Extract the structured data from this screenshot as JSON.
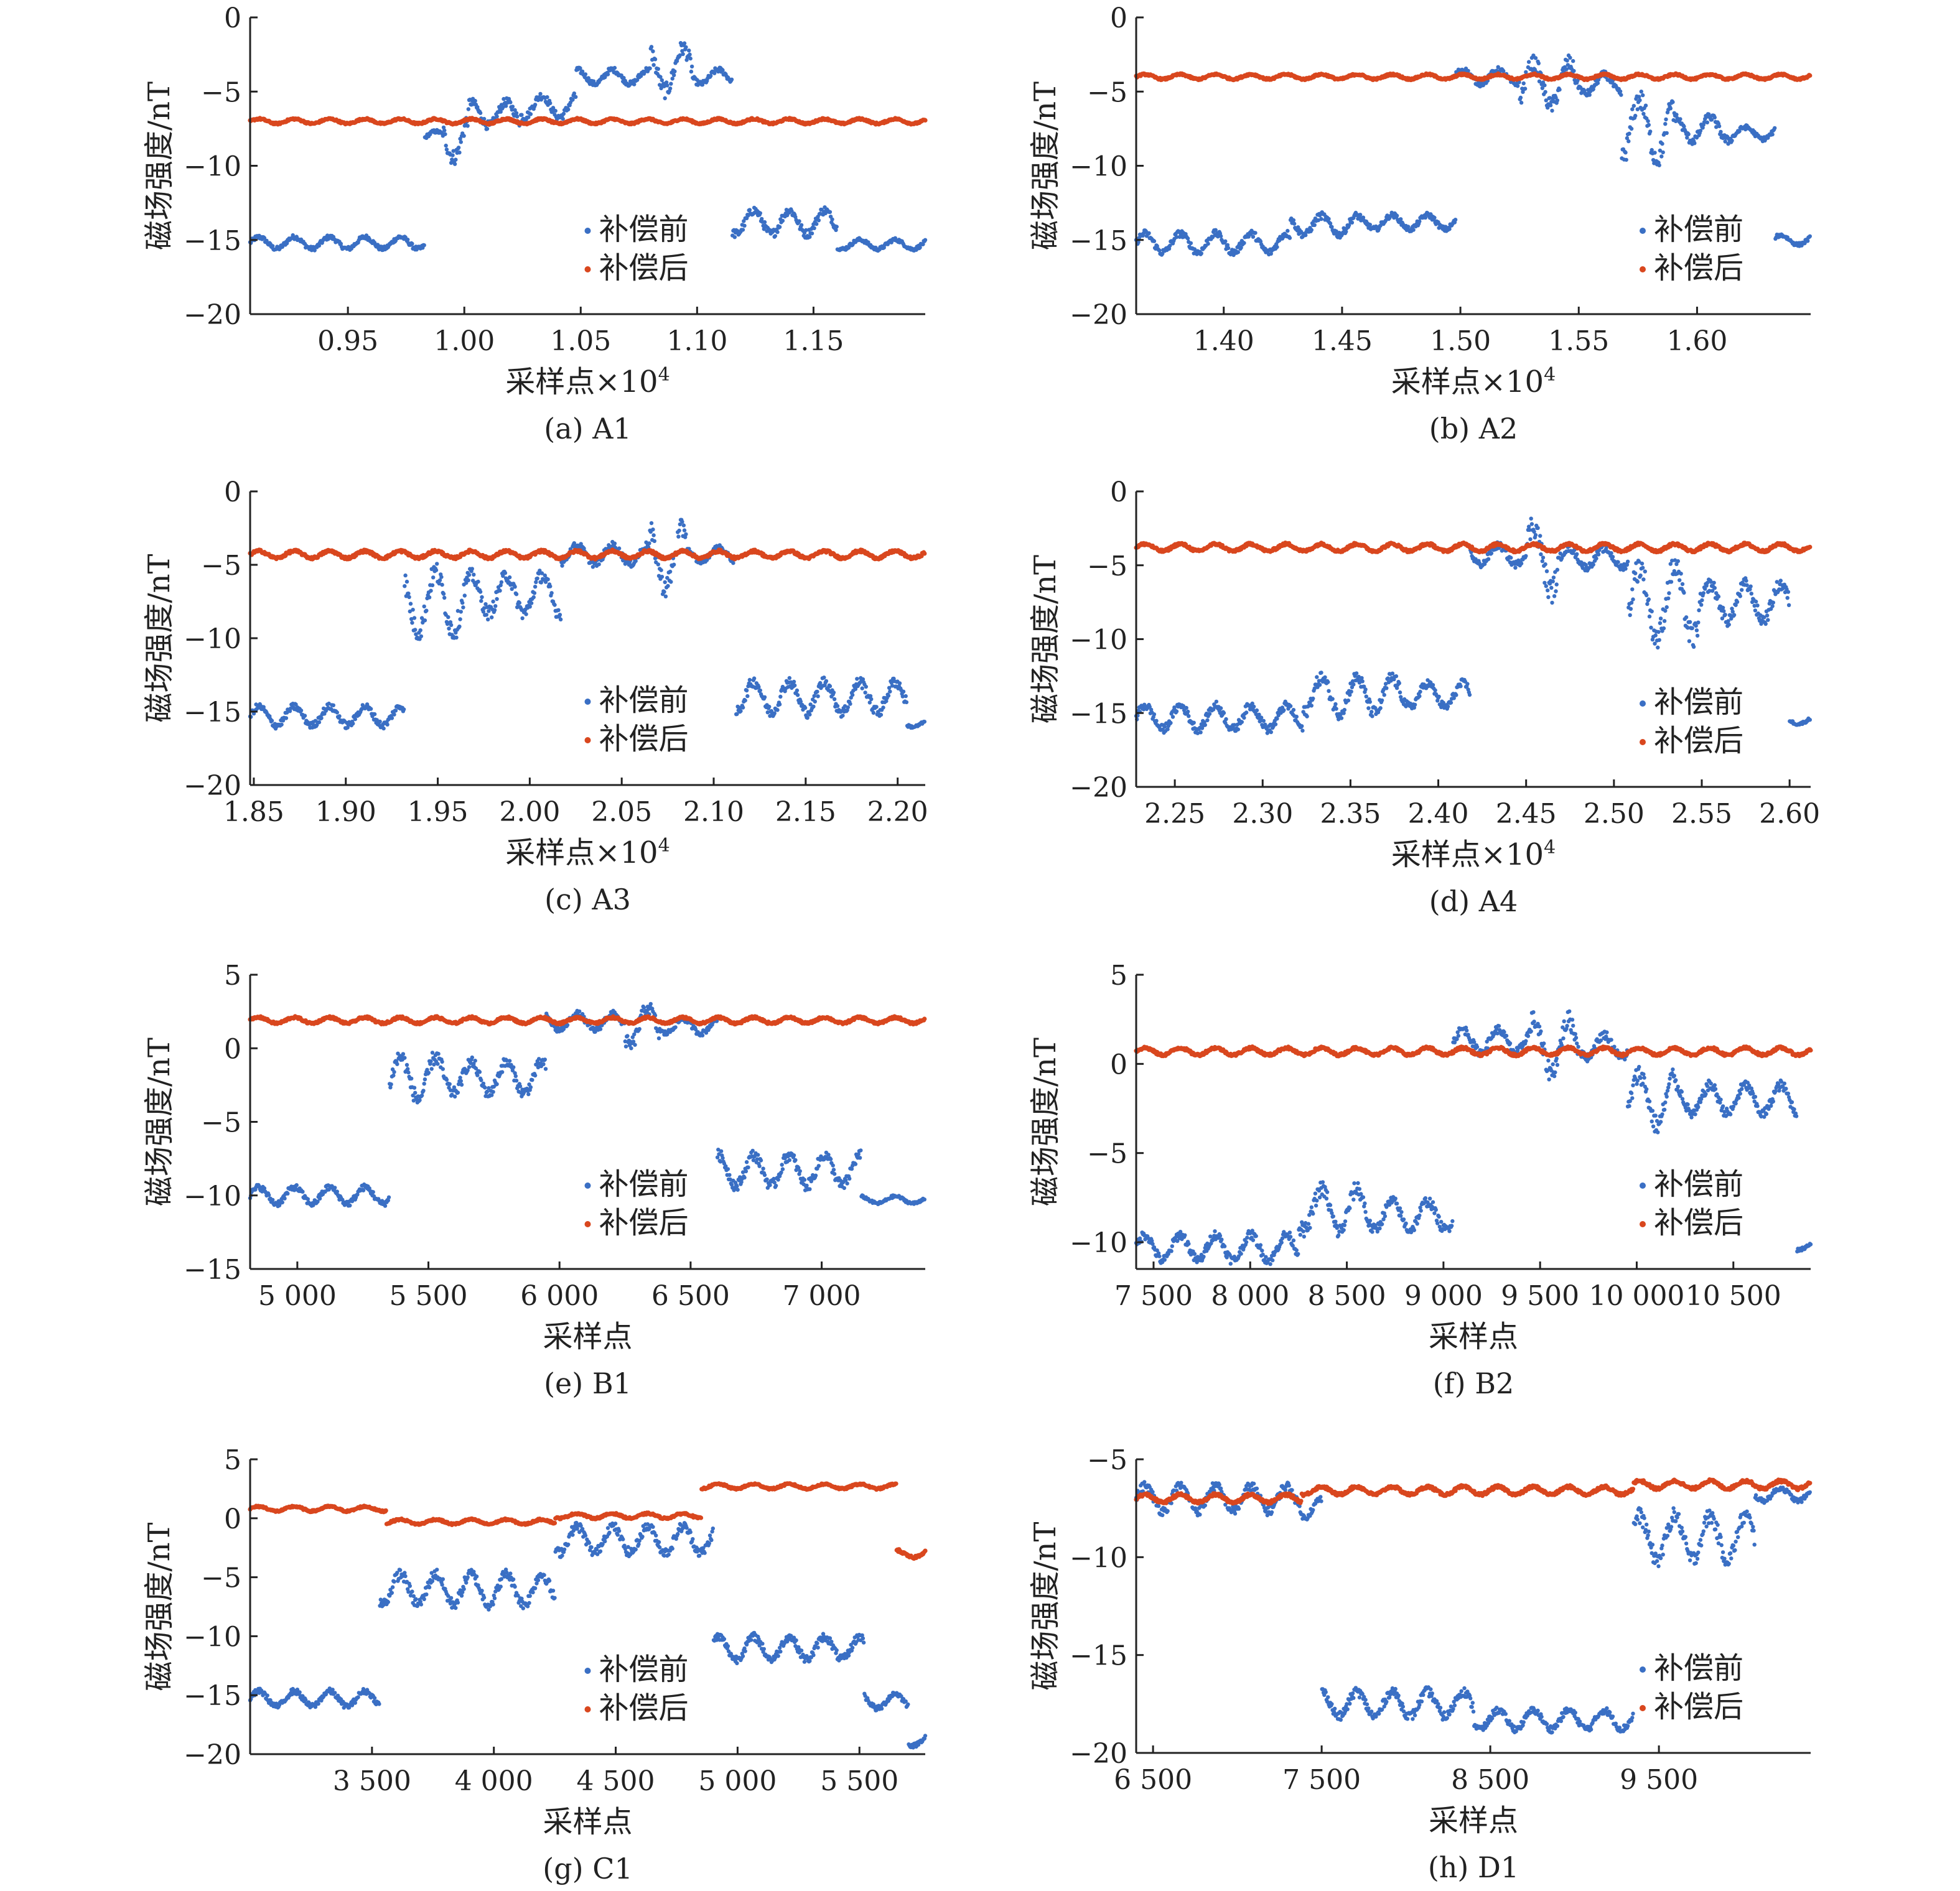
{
  "figure": {
    "series_colors": {
      "before": "#3a6fc4",
      "after": "#d9471e"
    }
  },
  "chart_data": [
    {
      "id": "A1",
      "type": "scatter",
      "caption": "(a) A1",
      "xlabel_text": "采样点×10",
      "xlabel_sup": "4",
      "ylabel": "磁场强度/nT",
      "xlim": [
        0.908,
        1.198
      ],
      "ylim": [
        -20,
        0
      ],
      "xticks": [
        0.95,
        1.0,
        1.05,
        1.1,
        1.15
      ],
      "xtick_labels": [
        "0.95",
        "1.00",
        "1.05",
        "1.10",
        "1.15"
      ],
      "yticks": [
        0,
        -5,
        -10,
        -15,
        -20
      ],
      "ytick_labels": [
        "0",
        "−5",
        "−10",
        "−15",
        "−20"
      ],
      "legend": {
        "position": "bottom-center",
        "entries": [
          "补偿前",
          "补偿后"
        ]
      },
      "series": [
        {
          "name": "补偿前",
          "color": "#3a6fc4",
          "segments": [
            [
              0.908,
              0.983,
              -15.2,
              0.5
            ],
            [
              0.983,
              0.991,
              -8.0,
              0.4
            ],
            [
              0.991,
              1.002,
              -8.0,
              1.8
            ],
            [
              1.002,
              1.024,
              -6.5,
              1.0
            ],
            [
              1.024,
              1.048,
              -6.0,
              0.9
            ],
            [
              1.048,
              1.08,
              -4.0,
              0.6
            ],
            [
              1.08,
              1.098,
              -3.5,
              1.8
            ],
            [
              1.098,
              1.115,
              -4.0,
              0.6
            ],
            [
              1.115,
              1.16,
              -13.8,
              1.0
            ],
            [
              1.16,
              1.198,
              -15.3,
              0.4
            ]
          ]
        },
        {
          "name": "补偿后",
          "color": "#d9471e",
          "segments": [
            [
              0.908,
              1.198,
              -7.0,
              0.2
            ]
          ]
        }
      ]
    },
    {
      "id": "A2",
      "type": "scatter",
      "caption": "(b) A2",
      "xlabel_text": "采样点×10",
      "xlabel_sup": "4",
      "ylabel": "磁场强度/nT",
      "xlim": [
        1.363,
        1.648
      ],
      "ylim": [
        -20,
        0
      ],
      "xticks": [
        1.4,
        1.45,
        1.5,
        1.55,
        1.6
      ],
      "xtick_labels": [
        "1.40",
        "1.45",
        "1.50",
        "1.55",
        "1.60"
      ],
      "yticks": [
        0,
        -5,
        -10,
        -15,
        -20
      ],
      "ytick_labels": [
        "0",
        "−5",
        "−10",
        "−15",
        "−20"
      ],
      "legend": {
        "position": "bottom-right",
        "entries": [
          "补偿前",
          "补偿后"
        ]
      },
      "series": [
        {
          "name": "补偿前",
          "color": "#3a6fc4",
          "segments": [
            [
              1.363,
              1.428,
              -15.2,
              0.8
            ],
            [
              1.428,
              1.46,
              -14.0,
              0.8
            ],
            [
              1.46,
              1.498,
              -13.8,
              0.6
            ],
            [
              1.498,
              1.525,
              -4.0,
              0.6
            ],
            [
              1.525,
              1.548,
              -4.5,
              1.8
            ],
            [
              1.548,
              1.568,
              -4.5,
              0.8
            ],
            [
              1.568,
              1.59,
              -7.5,
              2.5
            ],
            [
              1.59,
              1.615,
              -7.5,
              1.0
            ],
            [
              1.615,
              1.633,
              -7.8,
              0.5
            ],
            [
              1.633,
              1.648,
              -15.0,
              0.4
            ]
          ]
        },
        {
          "name": "补偿后",
          "color": "#d9471e",
          "segments": [
            [
              1.363,
              1.648,
              -4.0,
              0.2
            ]
          ]
        }
      ]
    },
    {
      "id": "A3",
      "type": "scatter",
      "caption": "(c) A3",
      "xlabel_text": "采样点×10",
      "xlabel_sup": "4",
      "ylabel": "磁场强度/nT",
      "xlim": [
        1.848,
        2.215
      ],
      "ylim": [
        -20,
        0
      ],
      "xticks": [
        1.85,
        1.9,
        1.95,
        2.0,
        2.05,
        2.1,
        2.15,
        2.2
      ],
      "xtick_labels": [
        "1.85",
        "1.90",
        "1.95",
        "2.00",
        "2.05",
        "2.10",
        "2.15",
        "2.20"
      ],
      "yticks": [
        0,
        -5,
        -10,
        -15,
        -20
      ],
      "ytick_labels": [
        "0",
        "−5",
        "−10",
        "−15",
        "−20"
      ],
      "legend": {
        "position": "bottom-center",
        "entries": [
          "补偿前",
          "补偿后"
        ]
      },
      "series": [
        {
          "name": "补偿前",
          "color": "#3a6fc4",
          "segments": [
            [
              1.848,
              1.932,
              -15.3,
              0.8
            ],
            [
              1.932,
              1.965,
              -7.5,
              2.5
            ],
            [
              1.965,
              2.017,
              -7.0,
              1.6
            ],
            [
              2.017,
              2.065,
              -4.3,
              0.8
            ],
            [
              2.065,
              2.085,
              -4.5,
              2.5
            ],
            [
              2.085,
              2.112,
              -4.3,
              0.6
            ],
            [
              2.112,
              2.205,
              -14.0,
              1.3
            ],
            [
              2.205,
              2.215,
              -15.8,
              0.3
            ]
          ]
        },
        {
          "name": "补偿后",
          "color": "#d9471e",
          "segments": [
            [
              1.848,
              2.215,
              -4.3,
              0.3
            ]
          ]
        }
      ]
    },
    {
      "id": "A4",
      "type": "scatter",
      "caption": "(d) A4",
      "xlabel_text": "采样点×10",
      "xlabel_sup": "4",
      "ylabel": "磁场强度/nT",
      "xlim": [
        2.228,
        2.612
      ],
      "ylim": [
        -20,
        0
      ],
      "xticks": [
        2.25,
        2.3,
        2.35,
        2.4,
        2.45,
        2.5,
        2.55,
        2.6
      ],
      "xtick_labels": [
        "2.25",
        "2.30",
        "2.35",
        "2.40",
        "2.45",
        "2.50",
        "2.55",
        "2.60"
      ],
      "yticks": [
        0,
        -5,
        -10,
        -15,
        -20
      ],
      "ytick_labels": [
        "0",
        "−5",
        "−10",
        "−15",
        "−20"
      ],
      "legend": {
        "position": "bottom-right",
        "entries": [
          "补偿前",
          "补偿后"
        ]
      },
      "series": [
        {
          "name": "补偿前",
          "color": "#3a6fc4",
          "segments": [
            [
              2.228,
              2.323,
              -15.3,
              1.0
            ],
            [
              2.323,
              2.378,
              -13.8,
              1.5
            ],
            [
              2.378,
              2.418,
              -13.8,
              1.0
            ],
            [
              2.418,
              2.45,
              -4.3,
              0.8
            ],
            [
              2.45,
              2.47,
              -4.5,
              2.8
            ],
            [
              2.47,
              2.508,
              -4.5,
              0.8
            ],
            [
              2.508,
              2.55,
              -7.5,
              3.0
            ],
            [
              2.55,
              2.6,
              -7.5,
              1.5
            ],
            [
              2.6,
              2.612,
              -15.5,
              0.3
            ]
          ]
        },
        {
          "name": "补偿后",
          "color": "#d9471e",
          "segments": [
            [
              2.228,
              2.612,
              -3.8,
              0.3
            ]
          ]
        }
      ]
    },
    {
      "id": "B1",
      "type": "scatter",
      "caption": "(e) B1",
      "xlabel_text": "采样点",
      "xlabel_sup": "",
      "ylabel": "磁场强度/nT",
      "xlim": [
        4820,
        7395
      ],
      "ylim": [
        -15,
        5
      ],
      "xticks": [
        5000,
        5500,
        6000,
        6500,
        7000
      ],
      "xtick_labels": [
        "5 000",
        "5 500",
        "6 000",
        "6 500",
        "7 000"
      ],
      "yticks": [
        5,
        0,
        -5,
        -10,
        -15
      ],
      "ytick_labels": [
        "5",
        "0",
        "−5",
        "−10",
        "−15"
      ],
      "legend": {
        "position": "bottom-center",
        "entries": [
          "补偿前",
          "补偿后"
        ]
      },
      "series": [
        {
          "name": "补偿前",
          "color": "#3a6fc4",
          "segments": [
            [
              4820,
              5350,
              -10.0,
              0.7
            ],
            [
              5350,
              5560,
              -2.0,
              1.8
            ],
            [
              5560,
              5950,
              -2.0,
              1.3
            ],
            [
              5950,
              6250,
              1.8,
              0.7
            ],
            [
              6250,
              6380,
              1.5,
              1.6
            ],
            [
              6380,
              6600,
              1.5,
              0.6
            ],
            [
              6600,
              7150,
              -8.3,
              1.3
            ],
            [
              7150,
              7395,
              -10.3,
              0.3
            ]
          ]
        },
        {
          "name": "补偿后",
          "color": "#d9471e",
          "segments": [
            [
              4820,
              7395,
              1.9,
              0.25
            ]
          ]
        }
      ]
    },
    {
      "id": "B2",
      "type": "scatter",
      "caption": "(f) B2",
      "xlabel_text": "采样点",
      "xlabel_sup": "",
      "ylabel": "磁场强度/nT",
      "xlim": [
        7410,
        10900
      ],
      "ylim": [
        -11.5,
        5
      ],
      "xticks": [
        7500,
        8000,
        8500,
        9000,
        9500,
        10000,
        10500
      ],
      "xtick_labels": [
        "7 500",
        "8 000",
        "8 500",
        "9 000",
        "9 500",
        "10 000",
        "10 500"
      ],
      "yticks": [
        5,
        0,
        -5,
        -10
      ],
      "ytick_labels": [
        "5",
        "0",
        "−5",
        "−10"
      ],
      "legend": {
        "position": "bottom-right",
        "entries": [
          "补偿前",
          "补偿后"
        ]
      },
      "series": [
        {
          "name": "补偿前",
          "color": "#3a6fc4",
          "segments": [
            [
              7410,
              8250,
              -10.3,
              0.9
            ],
            [
              8250,
              8600,
              -8.2,
              1.5
            ],
            [
              8600,
              9050,
              -8.5,
              1.0
            ],
            [
              9050,
              9450,
              1.3,
              0.8
            ],
            [
              9450,
              9700,
              1.0,
              1.8
            ],
            [
              9700,
              9950,
              1.0,
              0.8
            ],
            [
              9950,
              10200,
              -2.0,
              1.8
            ],
            [
              10200,
              10830,
              -2.0,
              1.0
            ],
            [
              10830,
              10900,
              -10.2,
              0.3
            ]
          ]
        },
        {
          "name": "补偿后",
          "color": "#d9471e",
          "segments": [
            [
              7410,
              10900,
              0.7,
              0.25
            ]
          ]
        }
      ]
    },
    {
      "id": "C1",
      "type": "scatter",
      "caption": "(g) C1",
      "xlabel_text": "采样点",
      "xlabel_sup": "",
      "ylabel": "磁场强度/nT",
      "xlim": [
        3000,
        5770
      ],
      "ylim": [
        -20,
        5
      ],
      "xticks": [
        3500,
        4000,
        4500,
        5000,
        5500
      ],
      "xtick_labels": [
        "3 500",
        "4 000",
        "4 500",
        "5 000",
        "5 500"
      ],
      "yticks": [
        5,
        0,
        -5,
        -10,
        -15,
        -20
      ],
      "ytick_labels": [
        "5",
        "0",
        "−5",
        "−10",
        "−15",
        "−20"
      ],
      "legend": {
        "position": "bottom-center",
        "entries": [
          "补偿前",
          "补偿后"
        ]
      },
      "series": [
        {
          "name": "补偿前",
          "color": "#3a6fc4",
          "segments": [
            [
              3000,
              3530,
              -15.3,
              0.8
            ],
            [
              3530,
              4250,
              -6.0,
              1.6
            ],
            [
              4250,
              4900,
              -1.8,
              1.4
            ],
            [
              4900,
              5520,
              -11.0,
              1.2
            ],
            [
              5520,
              5700,
              -15.5,
              0.8
            ],
            [
              5700,
              5770,
              -18.8,
              0.6
            ]
          ]
        },
        {
          "name": "补偿后",
          "color": "#d9471e",
          "segments": [
            [
              3000,
              3560,
              0.8,
              0.25
            ],
            [
              3560,
              4250,
              -0.3,
              0.25
            ],
            [
              4250,
              4850,
              0.2,
              0.25
            ],
            [
              4850,
              5650,
              2.7,
              0.25
            ],
            [
              5650,
              5770,
              -3.0,
              0.4
            ]
          ]
        }
      ]
    },
    {
      "id": "D1",
      "type": "scatter",
      "caption": "(h) D1",
      "xlabel_text": "采样点",
      "xlabel_sup": "",
      "ylabel": "磁场强度/nT",
      "xlim": [
        6400,
        10400
      ],
      "ylim": [
        -20,
        -5
      ],
      "xticks": [
        6500,
        7500,
        8500,
        9500
      ],
      "xtick_labels": [
        "6 500",
        "7 500",
        "8 500",
        "9 500"
      ],
      "yticks": [
        -5,
        -10,
        -15,
        -20
      ],
      "ytick_labels": [
        "−5",
        "−10",
        "−15",
        "−20"
      ],
      "legend": {
        "position": "bottom-right",
        "entries": [
          "补偿前",
          "补偿后"
        ]
      },
      "series": [
        {
          "name": "补偿前",
          "color": "#3a6fc4",
          "segments": [
            [
              6400,
              7380,
              -7.0,
              0.8
            ],
            [
              7380,
              7500,
              -7.5,
              0.6
            ],
            [
              7500,
              8400,
              -17.5,
              0.8
            ],
            [
              8400,
              9350,
              -18.3,
              0.6
            ],
            [
              9350,
              10070,
              -9.0,
              1.4
            ],
            [
              10070,
              10400,
              -6.8,
              0.4
            ]
          ]
        },
        {
          "name": "补偿后",
          "color": "#d9471e",
          "segments": [
            [
              6400,
              7380,
              -7.0,
              0.25
            ],
            [
              7380,
              9350,
              -6.6,
              0.25
            ],
            [
              9350,
              10400,
              -6.3,
              0.25
            ]
          ]
        }
      ]
    }
  ]
}
